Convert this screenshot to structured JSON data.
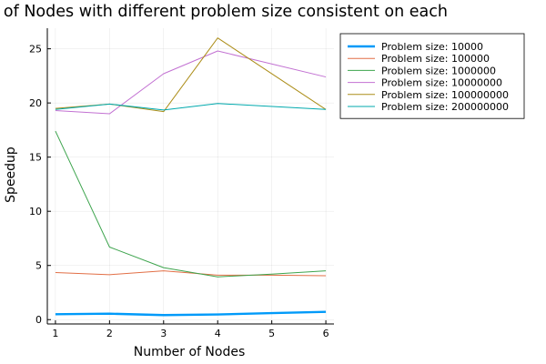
{
  "chart_data": {
    "type": "line",
    "title": "Number of Nodes with different problem size consistent on each",
    "xlabel": "Number of Nodes",
    "ylabel": "Speedup",
    "xlim": [
      0.85,
      6.15
    ],
    "ylim": [
      -0.4,
      26.9
    ],
    "xticks": [
      1,
      2,
      3,
      4,
      5,
      6
    ],
    "yticks": [
      0,
      5,
      10,
      15,
      20,
      25
    ],
    "grid": true,
    "legend_position": "top-right outside",
    "x": [
      1,
      2,
      3,
      4,
      5,
      6
    ],
    "series": [
      {
        "name": "Problem size: 10000",
        "color": "#009AF9",
        "emphasis": "thick",
        "x": [
          1,
          2,
          3,
          4,
          5,
          6
        ],
        "values": [
          0.5,
          0.55,
          0.42,
          0.48,
          0.6,
          0.72
        ]
      },
      {
        "name": "Problem size: 100000",
        "color": "#E26F46",
        "x": [
          1,
          2,
          3,
          4,
          5,
          6
        ],
        "values": [
          4.35,
          4.15,
          4.5,
          4.1,
          4.1,
          4.05
        ]
      },
      {
        "name": "Problem size: 1000000",
        "color": "#3DA44D",
        "x": [
          1,
          2,
          3,
          4,
          5,
          6
        ],
        "values": [
          17.4,
          6.7,
          4.8,
          3.95,
          4.2,
          4.5
        ]
      },
      {
        "name": "Problem size: 10000000",
        "color": "#C271D2",
        "x": [
          1,
          2,
          3,
          4,
          6
        ],
        "values": [
          19.3,
          19.0,
          22.7,
          24.8,
          22.4
        ]
      },
      {
        "name": "Problem size: 100000000",
        "color": "#AC8D18",
        "x": [
          1,
          2,
          3,
          4,
          6
        ],
        "values": [
          19.5,
          19.9,
          19.2,
          26.0,
          19.4
        ]
      },
      {
        "name": "Problem size: 200000000",
        "color": "#00A9AD",
        "x": [
          1,
          2,
          3,
          4,
          6
        ],
        "values": [
          19.4,
          19.9,
          19.35,
          19.95,
          19.4
        ]
      }
    ]
  }
}
